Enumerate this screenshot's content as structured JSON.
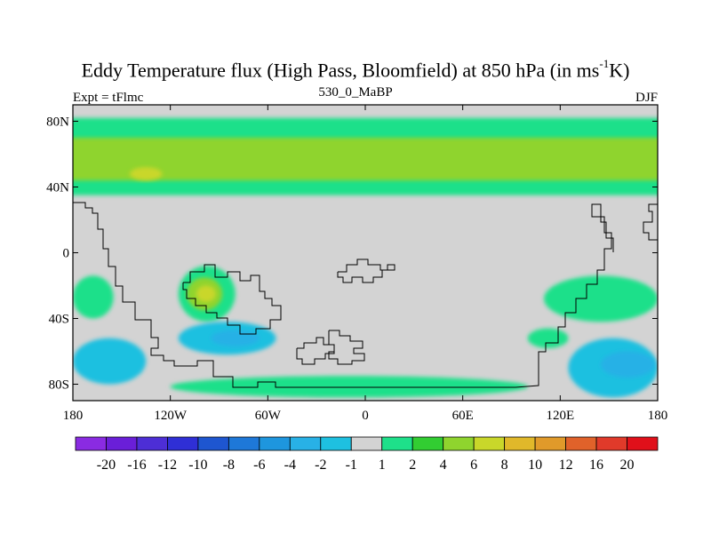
{
  "chart_data": {
    "type": "heatmap",
    "title_main": "Eddy Temperature flux (High Pass, Bloomfield) at 850 hPa (in ms",
    "title_sup": "-1",
    "title_end": "K)",
    "subtitle": "530_0_MaBP",
    "left_note": "Expt = tFlmc",
    "right_note": "DJF",
    "x_ticks": [
      {
        "value": -180,
        "label": "180"
      },
      {
        "value": -120,
        "label": "120W"
      },
      {
        "value": -60,
        "label": "60W"
      },
      {
        "value": 0,
        "label": "0"
      },
      {
        "value": 60,
        "label": "60E"
      },
      {
        "value": 120,
        "label": "120E"
      },
      {
        "value": 180,
        "label": "180"
      }
    ],
    "y_ticks": [
      {
        "value": 80,
        "label": "80N"
      },
      {
        "value": 40,
        "label": "40N"
      },
      {
        "value": 0,
        "label": "0"
      },
      {
        "value": -40,
        "label": "40S"
      },
      {
        "value": -80,
        "label": "80S"
      }
    ],
    "xlim": [
      -180,
      180
    ],
    "ylim": [
      -90,
      90
    ],
    "colorbar": {
      "labels": [
        "-20",
        "-16",
        "-12",
        "-10",
        "-8",
        "-6",
        "-4",
        "-2",
        "-1",
        "1",
        "2",
        "4",
        "6",
        "8",
        "10",
        "12",
        "16",
        "20"
      ],
      "colors": [
        "#8a2be2",
        "#6a1fd8",
        "#4d2ed6",
        "#2f2fd6",
        "#1e56d0",
        "#1e78d8",
        "#1e96de",
        "#28b1e6",
        "#1ec0e0",
        "#d3d3d3",
        "#1ee08a",
        "#32cd32",
        "#8fd42e",
        "#c9d72a",
        "#e0b82a",
        "#e09a2a",
        "#e0622a",
        "#e03a2a",
        "#e0101a"
      ]
    },
    "field_regions": [
      {
        "level": "1",
        "color": "#1ee08a",
        "lon": [
          -180,
          180
        ],
        "lat": [
          35,
          82
        ]
      },
      {
        "level": "2",
        "color": "#8fd42e",
        "lon": [
          -180,
          180
        ],
        "lat": [
          44,
          70
        ]
      },
      {
        "level": "4",
        "color": "#c9d72a",
        "lon": [
          -145,
          -125
        ],
        "lat": [
          44,
          52
        ]
      },
      {
        "level": "1",
        "color": "#1ee08a",
        "lon": [
          -115,
          -80
        ],
        "lat": [
          -42,
          -8
        ]
      },
      {
        "level": "2",
        "color": "#8fd42e",
        "lon": [
          -110,
          -88
        ],
        "lat": [
          -35,
          -15
        ]
      },
      {
        "level": "4",
        "color": "#c9d72a",
        "lon": [
          -104,
          -92
        ],
        "lat": [
          -30,
          -20
        ]
      },
      {
        "level": "-1",
        "color": "#1ec0e0",
        "lon": [
          -115,
          -55
        ],
        "lat": [
          -62,
          -42
        ]
      },
      {
        "level": "-2",
        "color": "#28b1e6",
        "lon": [
          -95,
          -65
        ],
        "lat": [
          -57,
          -47
        ]
      },
      {
        "level": "-1",
        "color": "#1ec0e0",
        "lon": [
          -180,
          -135
        ],
        "lat": [
          -80,
          -52
        ]
      },
      {
        "level": "1",
        "color": "#1ee08a",
        "lon": [
          -120,
          100
        ],
        "lat": [
          -88,
          -75
        ]
      },
      {
        "level": "1",
        "color": "#1ee08a",
        "lon": [
          -180,
          -155
        ],
        "lat": [
          -40,
          -14
        ]
      },
      {
        "level": "1",
        "color": "#1ee08a",
        "lon": [
          110,
          180
        ],
        "lat": [
          -42,
          -14
        ]
      },
      {
        "level": "1",
        "color": "#1ee08a",
        "lon": [
          100,
          125
        ],
        "lat": [
          -58,
          -46
        ]
      },
      {
        "level": "-1",
        "color": "#1ec0e0",
        "lon": [
          125,
          180
        ],
        "lat": [
          -88,
          -52
        ]
      },
      {
        "level": "-2",
        "color": "#28b1e6",
        "lon": [
          145,
          178
        ],
        "lat": [
          -76,
          -60
        ]
      }
    ]
  }
}
